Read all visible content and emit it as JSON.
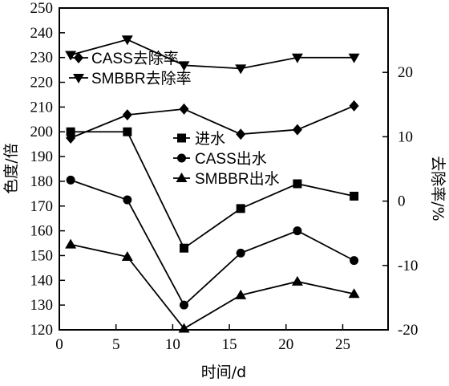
{
  "chart_data": {
    "type": "line",
    "x": [
      1,
      6,
      11,
      16,
      21,
      26
    ],
    "xlabel": "时间/d",
    "ylabel_left": "色度/倍",
    "ylabel_right": "去除率/%",
    "xlim": [
      0,
      29
    ],
    "ylim_left": [
      120,
      250
    ],
    "ylim_right": [
      -20,
      30
    ],
    "xticks": [
      0,
      5,
      10,
      15,
      20,
      25
    ],
    "yticks_left": [
      120,
      130,
      140,
      150,
      160,
      170,
      180,
      190,
      200,
      210,
      220,
      230,
      240,
      250
    ],
    "yticks_right": [
      -20,
      -10,
      0,
      10,
      20
    ],
    "grid": false,
    "series": [
      {
        "name": "进水",
        "axis": "left",
        "marker": "square",
        "values": [
          200,
          200,
          153,
          169,
          179,
          174
        ]
      },
      {
        "name": "CASS出水",
        "axis": "left",
        "marker": "circle",
        "values": [
          180.5,
          172.5,
          130,
          151,
          160,
          148
        ]
      },
      {
        "name": "SMBBR出水",
        "axis": "left",
        "marker": "triangle-up",
        "values": [
          154.5,
          149.5,
          120.5,
          134,
          139.5,
          134.5
        ]
      },
      {
        "name": "CASS去除率",
        "axis": "right",
        "marker": "diamond",
        "values": [
          9.8,
          13.4,
          14.3,
          10.4,
          11.1,
          14.8
        ]
      },
      {
        "name": "SMBBR去除率",
        "axis": "right",
        "marker": "triangle-down",
        "values": [
          22.7,
          25.1,
          21.1,
          20.6,
          22.3,
          22.3
        ]
      }
    ],
    "legends": [
      {
        "position": "upper-left",
        "items": [
          "CASS去除率",
          "SMBBR去除率"
        ]
      },
      {
        "position": "center",
        "items": [
          "进水",
          "CASS出水",
          "SMBBR出水"
        ]
      }
    ]
  }
}
